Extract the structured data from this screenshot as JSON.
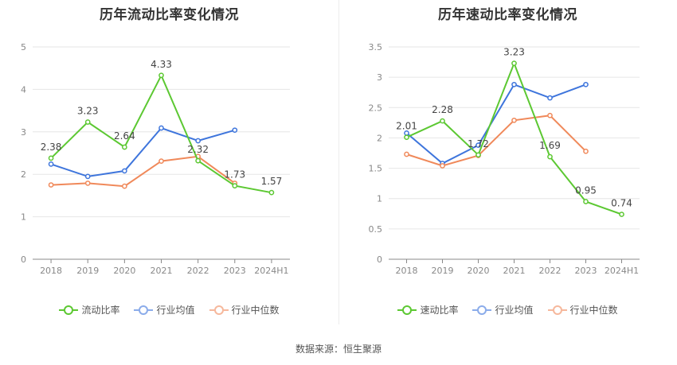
{
  "chart_data": [
    {
      "type": "line",
      "title": "历年流动比率变化情况",
      "categories": [
        "2018",
        "2019",
        "2020",
        "2021",
        "2022",
        "2023",
        "2024H1"
      ],
      "ylim": [
        0,
        5
      ],
      "yticks": [
        "0",
        "1",
        "2",
        "3",
        "4",
        "5"
      ],
      "grid": true,
      "legend": "bottom",
      "series": [
        {
          "name": "流动比率",
          "color": "#5cc832",
          "labeled": true,
          "values": [
            2.38,
            3.23,
            2.64,
            4.33,
            2.32,
            1.73,
            1.57
          ],
          "labels": [
            "2.38",
            "3.23",
            "2.64",
            "4.33",
            "2.32",
            "1.73",
            "1.57"
          ]
        },
        {
          "name": "行业均值",
          "color": "#3e75dc",
          "labeled": false,
          "values": [
            2.24,
            1.95,
            2.08,
            3.09,
            2.79,
            3.04,
            null
          ]
        },
        {
          "name": "行业中位数",
          "color": "#f0895a",
          "labeled": false,
          "values": [
            1.75,
            1.79,
            1.72,
            2.31,
            2.42,
            1.79,
            null
          ]
        }
      ]
    },
    {
      "type": "line",
      "title": "历年速动比率变化情况",
      "categories": [
        "2018",
        "2019",
        "2020",
        "2021",
        "2022",
        "2023",
        "2024H1"
      ],
      "ylim": [
        0,
        3.5
      ],
      "yticks": [
        "0",
        "0.5",
        "1",
        "1.5",
        "2",
        "2.5",
        "3",
        "3.5"
      ],
      "grid": true,
      "legend": "bottom",
      "series": [
        {
          "name": "速动比率",
          "color": "#5cc832",
          "labeled": true,
          "values": [
            2.01,
            2.28,
            1.72,
            3.23,
            1.69,
            0.95,
            0.74
          ],
          "labels": [
            "2.01",
            "2.28",
            "1.72",
            "3.23",
            "1.69",
            "0.95",
            "0.74"
          ]
        },
        {
          "name": "行业均值",
          "color": "#3e75dc",
          "labeled": false,
          "values": [
            2.08,
            1.58,
            1.88,
            2.88,
            2.66,
            2.88,
            null
          ]
        },
        {
          "name": "行业中位数",
          "color": "#f0895a",
          "labeled": false,
          "values": [
            1.73,
            1.54,
            1.71,
            2.29,
            2.37,
            1.78,
            null
          ]
        }
      ]
    }
  ],
  "footer": {
    "source": "数据来源：恒生聚源"
  }
}
